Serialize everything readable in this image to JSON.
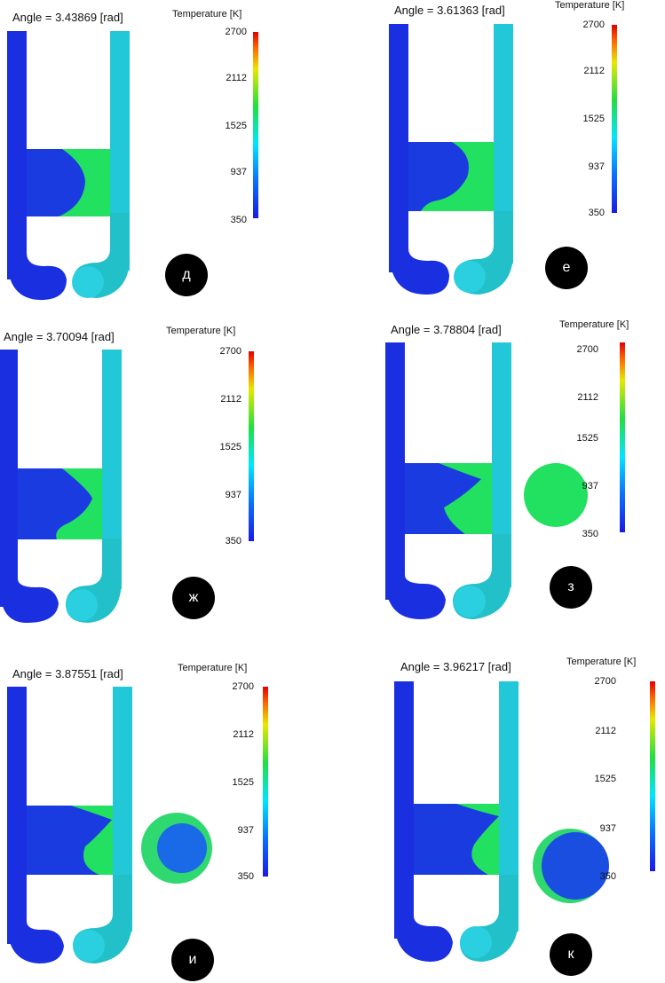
{
  "colorbar": {
    "title": "Temperature [K]",
    "ticks": [
      "2700",
      "2112",
      "1525",
      "937",
      "350"
    ]
  },
  "panels": [
    {
      "angle": "Angle = 3.43869 [rad]",
      "label": "д",
      "section_circle": "none"
    },
    {
      "angle": "Angle = 3.61363 [rad]",
      "label": "е",
      "section_circle": "none"
    },
    {
      "angle": "Angle = 3.70094 [rad]",
      "label": "ж",
      "section_circle": "none"
    },
    {
      "angle": "Angle = 3.78804 [rad]",
      "label": "з",
      "section_circle": "green"
    },
    {
      "angle": "Angle = 3.87551 [rad]",
      "label": "и",
      "section_circle": "green-ring-blue-core"
    },
    {
      "angle": "Angle = 3.96217 [rad]",
      "label": "к",
      "section_circle": "blue-with-green-crescent"
    }
  ],
  "colors": {
    "cold": "#1a2fe0",
    "mid_cyan": "#22c8d8",
    "green": "#22e060",
    "badge": "#000000"
  }
}
